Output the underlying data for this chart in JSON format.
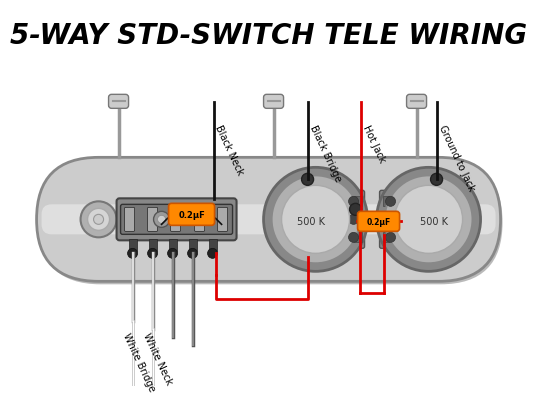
{
  "title": "5-WAY STD-SWITCH TELE WIRING",
  "title_fontsize": 20,
  "title_style": "italic",
  "title_weight": "bold",
  "bg_color": "#ffffff",
  "plate_color": "#cccccc",
  "plate_edge": "#888888",
  "plate_highlight": "#e8e8e8",
  "cap_color": "#ff8800",
  "cap_edge": "#cc5500",
  "wire_red": "#dd0000",
  "wire_black": "#111111",
  "wire_gray": "#999999",
  "cap1_text": "0.2μF",
  "cap2_text": "0.2μF",
  "pot_text": "500 K"
}
